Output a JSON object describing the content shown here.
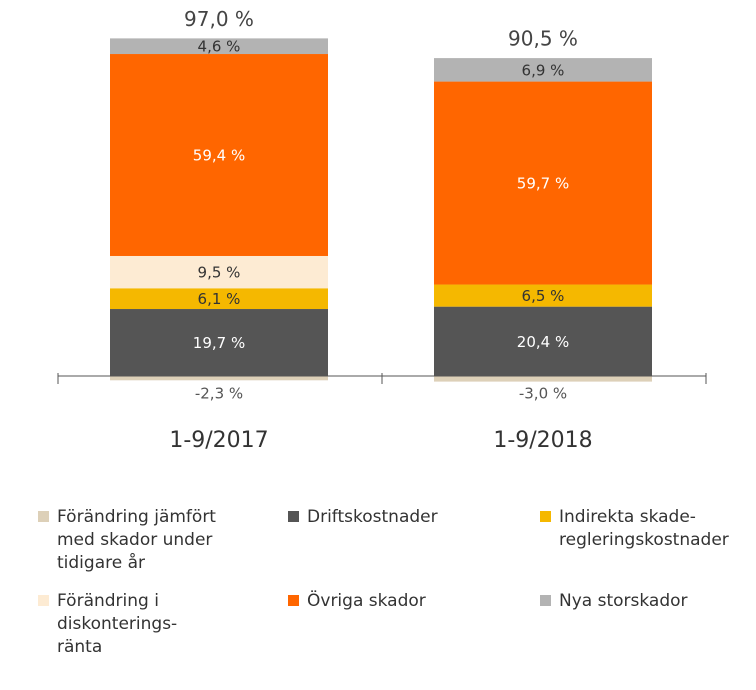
{
  "chart_data": {
    "type": "bar",
    "stacked": true,
    "categories": [
      "1-9/2017",
      "1-9/2018"
    ],
    "totals": [
      "97,0 %",
      "90,5 %"
    ],
    "series": [
      {
        "key": "change_prior",
        "name": "Förändring jämfört med skador under tidigare år",
        "color": "#ddd0b8",
        "values": [
          -2.3,
          -3.0
        ],
        "labels": [
          "-2,3 %",
          "-3,0 %"
        ]
      },
      {
        "key": "drift",
        "name": "Driftskostnader",
        "color": "#555555",
        "values": [
          19.7,
          20.4
        ],
        "labels": [
          "19,7 %",
          "20,4 %"
        ]
      },
      {
        "key": "indirect",
        "name": "Indirekta skade-regleringskostnader",
        "color": "#f5b800",
        "values": [
          6.1,
          6.5
        ],
        "labels": [
          "6,1 %",
          "6,5 %"
        ]
      },
      {
        "key": "discount",
        "name": "Förändring i diskonterings-ränta",
        "color": "#fdebd3",
        "values": [
          9.5,
          0
        ],
        "labels": [
          "9,5 %",
          ""
        ]
      },
      {
        "key": "other",
        "name": "Övriga skador",
        "color": "#ff6600",
        "values": [
          59.4,
          59.7
        ],
        "labels": [
          "59,4 %",
          "59,7 %"
        ]
      },
      {
        "key": "large",
        "name": "Nya storskador",
        "color": "#b3b3b3",
        "values": [
          4.6,
          6.9
        ],
        "labels": [
          "4,6 %",
          "6,9 %"
        ]
      }
    ],
    "ylim": [
      -3,
      101
    ],
    "grid": false,
    "legend_position": "bottom"
  },
  "legend": [
    {
      "label": "Förändring jämfört\nmed skador under\ntidigare år",
      "color": "#ddd0b8"
    },
    {
      "label": "Driftskostnader",
      "color": "#555555"
    },
    {
      "label": "Indirekta skade-\nregleringskostnader",
      "color": "#f5b800"
    },
    {
      "label": "Förändring i\ndiskonterings-\nränta",
      "color": "#fdebd3"
    },
    {
      "label": "Övriga skador",
      "color": "#ff6600"
    },
    {
      "label": "Nya storskador",
      "color": "#b3b3b3"
    }
  ]
}
